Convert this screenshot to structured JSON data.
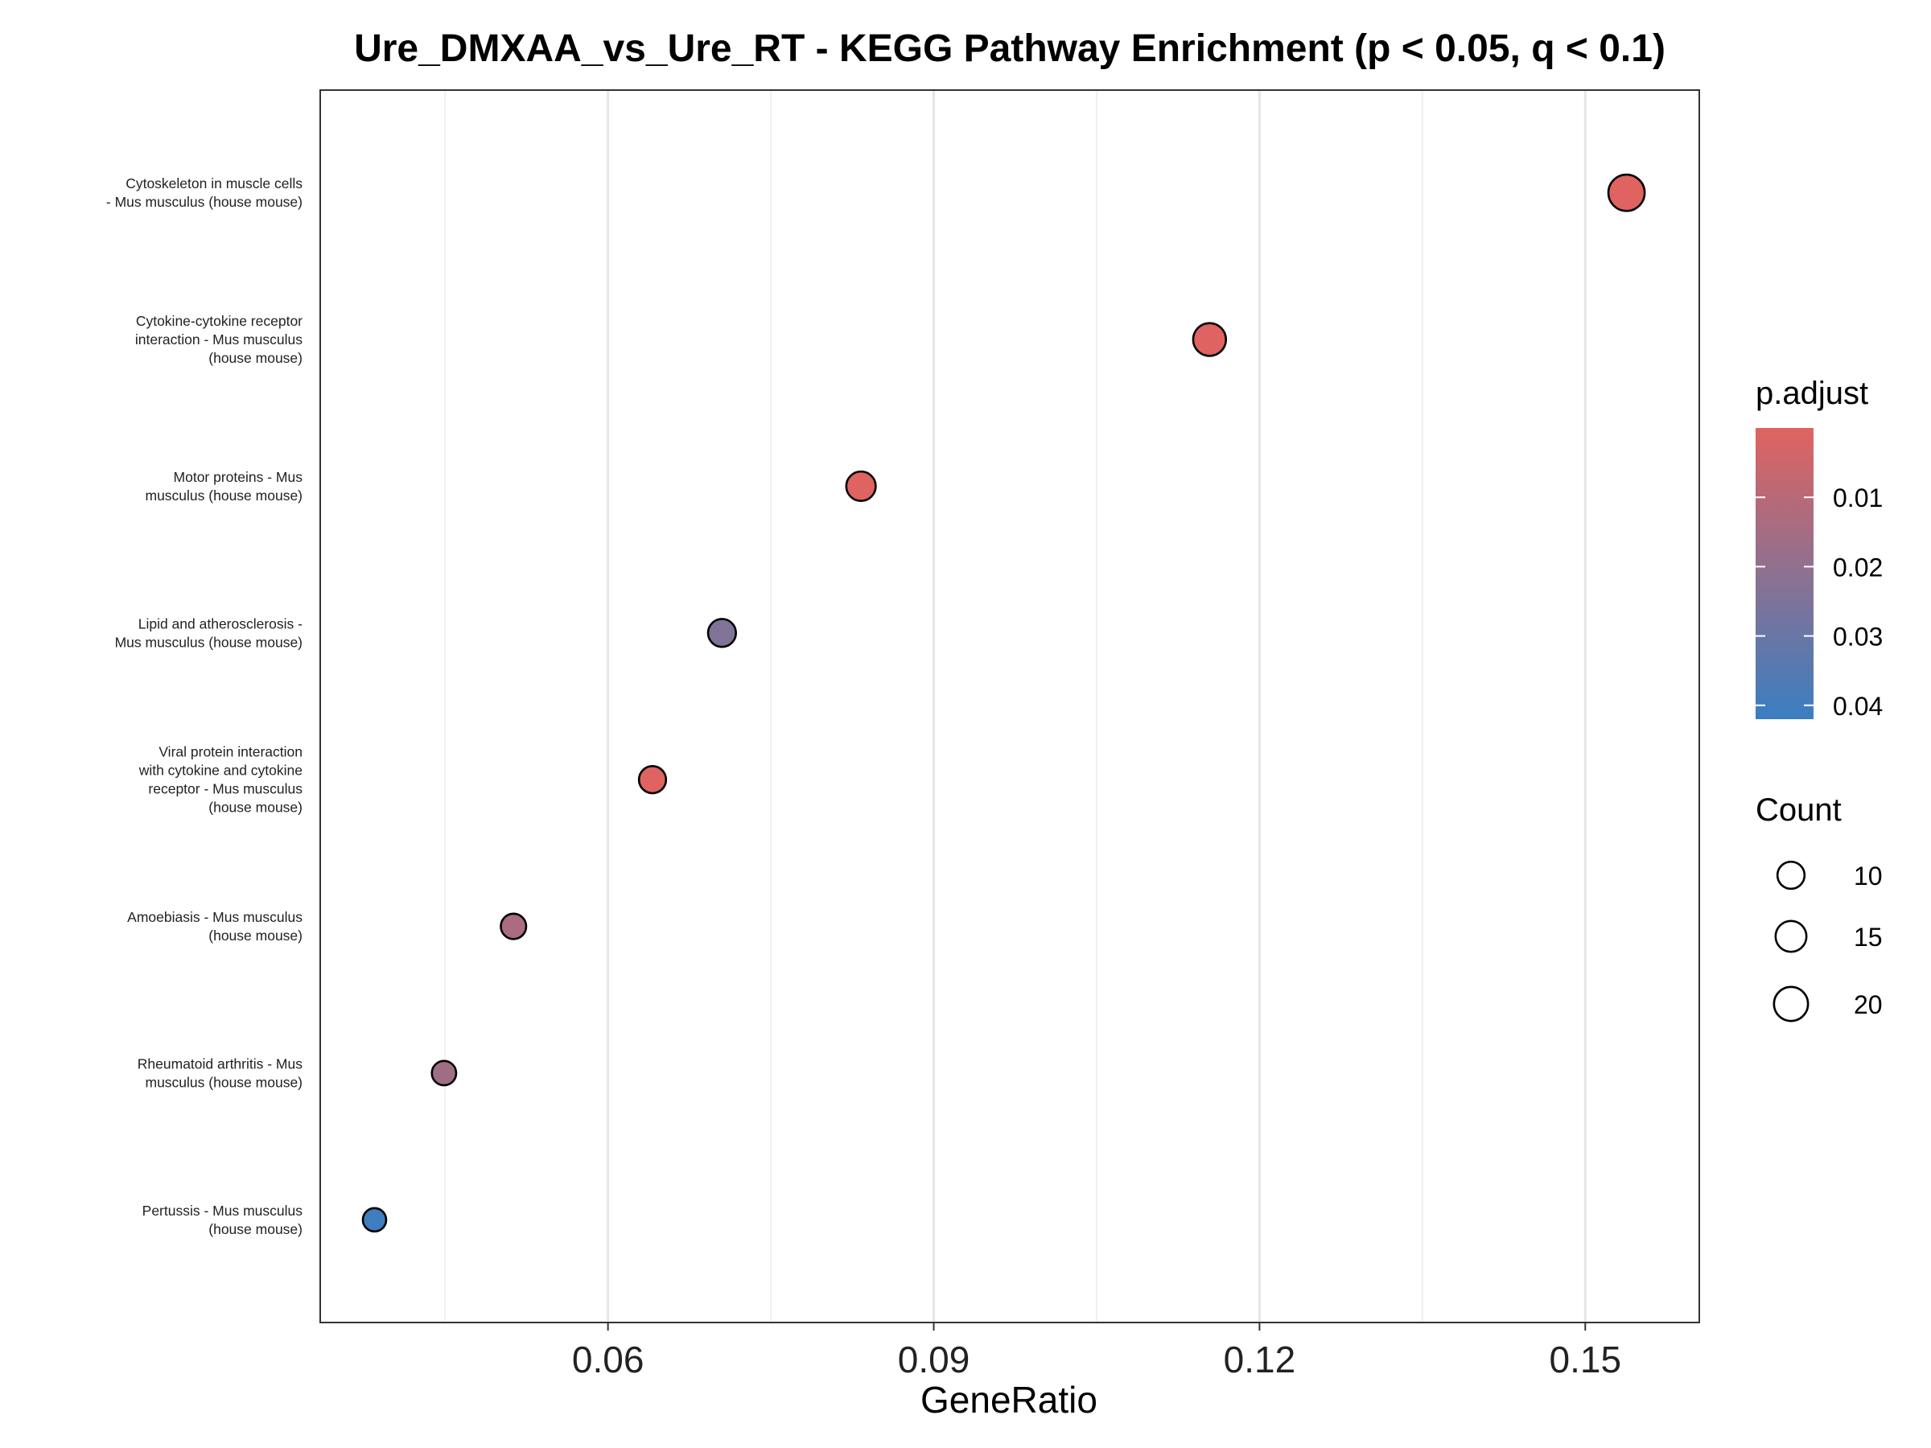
{
  "chart_data": {
    "type": "scatter",
    "title": "Ure_DMXAA_vs_Ure_RT - KEGG Pathway Enrichment (p < 0.05, q < 0.1)",
    "xlabel": "GeneRatio",
    "ylabel": "",
    "xlim": [
      0.0335,
      0.1605
    ],
    "xticks": [
      0.06,
      0.09,
      0.12,
      0.15
    ],
    "xtick_labels": [
      "0.06",
      "0.09",
      "0.12",
      "0.15"
    ],
    "grid": true,
    "categories": [
      [
        "Cytoskeleton in muscle cells",
        "- Mus musculus (house mouse)"
      ],
      [
        "Cytokine-cytokine receptor",
        "interaction - Mus musculus",
        "(house mouse)"
      ],
      [
        "Motor proteins - Mus",
        "musculus (house mouse)"
      ],
      [
        "Lipid and atherosclerosis -",
        "Mus musculus (house mouse)"
      ],
      [
        "Viral protein interaction",
        "with cytokine and cytokine",
        "receptor - Mus musculus",
        "(house mouse)"
      ],
      [
        "Amoebiasis - Mus musculus",
        "(house mouse)"
      ],
      [
        "Rheumatoid arthritis - Mus",
        "musculus (house mouse)"
      ],
      [
        "Pertussis - Mus musculus",
        "(house mouse)"
      ]
    ],
    "points": [
      {
        "gene_ratio": 0.1538,
        "count": 24,
        "p_adjust": 0.0002
      },
      {
        "gene_ratio": 0.1154,
        "count": 18,
        "p_adjust": 0.0003
      },
      {
        "gene_ratio": 0.0833,
        "count": 13,
        "p_adjust": 0.0005
      },
      {
        "gene_ratio": 0.0705,
        "count": 11,
        "p_adjust": 0.024
      },
      {
        "gene_ratio": 0.0641,
        "count": 10,
        "p_adjust": 0.0005
      },
      {
        "gene_ratio": 0.0513,
        "count": 8,
        "p_adjust": 0.014
      },
      {
        "gene_ratio": 0.0449,
        "count": 7,
        "p_adjust": 0.016
      },
      {
        "gene_ratio": 0.0385,
        "count": 6,
        "p_adjust": 0.041
      }
    ],
    "color_legend": {
      "title": "p.adjust",
      "range": [
        0.0,
        0.042
      ],
      "ticks": [
        0.01,
        0.02,
        0.03,
        0.04
      ],
      "tick_labels": [
        "0.01",
        "0.02",
        "0.03",
        "0.04"
      ],
      "low_color": "#E06360",
      "high_color": "#3A7EC1"
    },
    "size_legend": {
      "title": "Count",
      "values": [
        10,
        15,
        20
      ],
      "labels": [
        "10",
        "15",
        "20"
      ]
    },
    "legend_position": "right"
  }
}
